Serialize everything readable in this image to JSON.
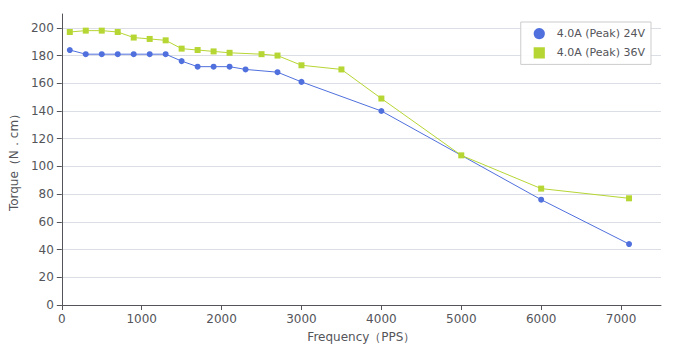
{
  "chart_data": {
    "type": "line",
    "xlabel": "Frequency（PPS）",
    "ylabel": "Torque（N．cm）",
    "series": [
      {
        "name": "4.0A (Peak) 24V",
        "marker": "circle",
        "x": [
          100,
          300,
          500,
          700,
          900,
          1100,
          1300,
          1500,
          1700,
          1900,
          2100,
          2300,
          2700,
          3000,
          4000,
          6000,
          7100
        ],
        "values": [
          184,
          181,
          181,
          181,
          181,
          181,
          181,
          176,
          172,
          172,
          172,
          170,
          168,
          161,
          140,
          76,
          44
        ]
      },
      {
        "name": "4.0A (Peak) 36V",
        "marker": "square",
        "x": [
          100,
          300,
          500,
          700,
          900,
          1100,
          1300,
          1500,
          1700,
          1900,
          2100,
          2500,
          2700,
          3000,
          3500,
          4000,
          5000,
          6000,
          7100
        ],
        "values": [
          197,
          198,
          198,
          197,
          193,
          192,
          191,
          185,
          184,
          183,
          182,
          181,
          180,
          173,
          170,
          149,
          108,
          84,
          77
        ]
      }
    ],
    "xlim": [
      0,
      7500
    ],
    "ylim": [
      0,
      210
    ],
    "xticks": [
      0,
      1000,
      2000,
      3000,
      4000,
      5000,
      6000,
      7000
    ],
    "yticks": [
      0,
      20,
      40,
      60,
      80,
      100,
      120,
      140,
      160,
      180,
      200
    ],
    "grid": true,
    "legend": "upper right"
  }
}
